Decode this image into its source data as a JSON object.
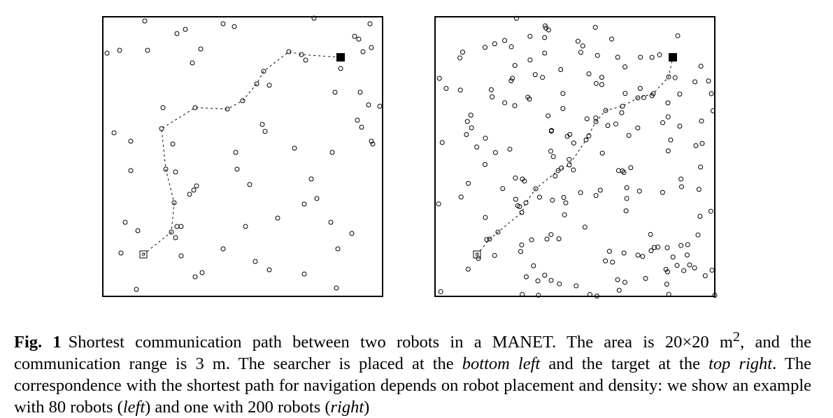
{
  "figure": {
    "panels": [
      {
        "id": "left",
        "robots": 80,
        "searcher": [
          2.9,
          3.0
        ],
        "target": [
          17.0,
          17.1
        ],
        "path": [
          [
            2.9,
            3.0
          ],
          [
            4.9,
            4.6
          ],
          [
            5.1,
            6.7
          ],
          [
            4.5,
            9.1
          ],
          [
            4.2,
            12.0
          ],
          [
            6.6,
            13.5
          ],
          [
            8.9,
            13.4
          ],
          [
            10.0,
            14.0
          ],
          [
            11.0,
            15.2
          ],
          [
            11.5,
            16.1
          ],
          [
            13.3,
            17.5
          ],
          [
            14.2,
            17.3
          ],
          [
            17.0,
            17.1
          ]
        ],
        "others": [
          [
            3.0,
            19.7
          ],
          [
            5.3,
            18.8
          ],
          [
            5.9,
            19.1
          ],
          [
            3.2,
            17.6
          ],
          [
            1.2,
            17.6
          ],
          [
            0.3,
            17.4
          ],
          [
            6.4,
            16.7
          ],
          [
            8.6,
            19.5
          ],
          [
            9.4,
            19.3
          ],
          [
            7.0,
            17.7
          ],
          [
            14.5,
            16.9
          ],
          [
            15.1,
            19.9
          ],
          [
            18.0,
            18.6
          ],
          [
            18.3,
            18.4
          ],
          [
            19.1,
            19.5
          ],
          [
            18.6,
            17.5
          ],
          [
            19.2,
            17.8
          ],
          [
            17.0,
            16.3
          ],
          [
            18.4,
            14.6
          ],
          [
            19.0,
            13.7
          ],
          [
            19.8,
            13.6
          ],
          [
            11.9,
            15.1
          ],
          [
            16.6,
            14.6
          ],
          [
            18.2,
            12.6
          ],
          [
            18.5,
            12.1
          ],
          [
            19.2,
            11.1
          ],
          [
            19.3,
            10.9
          ],
          [
            0.8,
            11.7
          ],
          [
            2.0,
            11.1
          ],
          [
            4.3,
            13.5
          ],
          [
            2.0,
            9.0
          ],
          [
            5.0,
            10.9
          ],
          [
            11.4,
            12.3
          ],
          [
            11.6,
            11.8
          ],
          [
            9.5,
            10.3
          ],
          [
            13.7,
            10.6
          ],
          [
            16.4,
            10.3
          ],
          [
            9.6,
            9.1
          ],
          [
            10.5,
            8.0
          ],
          [
            14.9,
            8.4
          ],
          [
            5.2,
            8.9
          ],
          [
            6.5,
            7.6
          ],
          [
            6.7,
            7.9
          ],
          [
            6.2,
            7.3
          ],
          [
            15.3,
            7.0
          ],
          [
            14.4,
            6.6
          ],
          [
            12.5,
            5.6
          ],
          [
            1.6,
            5.3
          ],
          [
            2.5,
            4.7
          ],
          [
            5.3,
            5.0
          ],
          [
            5.6,
            5.0
          ],
          [
            5.2,
            4.2
          ],
          [
            10.2,
            5.0
          ],
          [
            16.3,
            5.3
          ],
          [
            17.8,
            4.5
          ],
          [
            1.3,
            3.1
          ],
          [
            8.6,
            3.4
          ],
          [
            16.8,
            3.4
          ],
          [
            5.6,
            2.9
          ],
          [
            10.9,
            2.5
          ],
          [
            11.9,
            1.9
          ],
          [
            14.4,
            1.6
          ],
          [
            6.6,
            1.4
          ],
          [
            7.1,
            1.7
          ],
          [
            2.4,
            0.5
          ],
          [
            16.7,
            0.6
          ]
        ]
      },
      {
        "id": "right",
        "robots": 200,
        "searcher": [
          3.0,
          3.0
        ],
        "target": [
          17.0,
          17.1
        ],
        "path": [
          [
            3.0,
            3.0
          ],
          [
            3.9,
            4.1
          ],
          [
            4.5,
            4.6
          ],
          [
            6.2,
            6.0
          ],
          [
            6.5,
            6.7
          ],
          [
            7.2,
            7.7
          ],
          [
            8.8,
            9.0
          ],
          [
            9.6,
            9.4
          ],
          [
            10.8,
            11.2
          ],
          [
            11.5,
            12.5
          ],
          [
            12.2,
            13.3
          ],
          [
            13.4,
            13.6
          ],
          [
            14.5,
            14.2
          ],
          [
            15.6,
            14.5
          ],
          [
            16.7,
            15.7
          ],
          [
            17.0,
            17.1
          ]
        ]
      }
    ],
    "caption": {
      "label": "Fig. 1",
      "text_1": "Shortest communication path between two robots in a MANET. The area is 20×20 m",
      "sup": "2",
      "text_2": ", and the communication range is 3 m. The searcher is placed at the ",
      "em_1": "bottom left",
      "text_3": " and the target at the ",
      "em_2": "top right",
      "text_4": ". The correspondence with the shortest path for navigation depends on robot placement and density: we show an example with 80 robots (",
      "em_3": "left",
      "text_5": ") and one with 200 robots (",
      "em_4": "right",
      "text_6": ")"
    }
  }
}
